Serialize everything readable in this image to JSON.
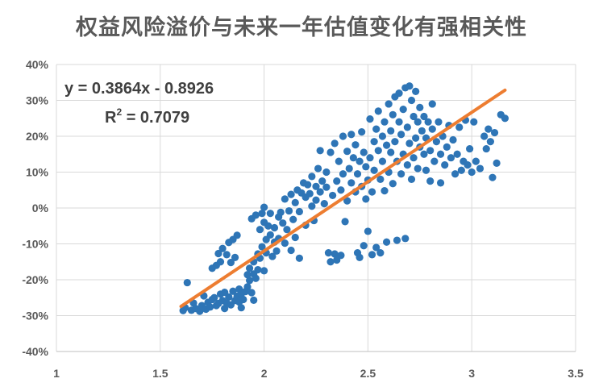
{
  "chart_data": {
    "type": "scatter",
    "title": "权益风险溢价与未来一年估值变化有强相关性",
    "xlabel": "",
    "ylabel": "",
    "xlim": [
      1,
      3.5
    ],
    "ylim": [
      -0.4,
      0.4
    ],
    "x_ticks": [
      "1",
      "1.5",
      "2",
      "2.5",
      "3",
      "3.5"
    ],
    "y_ticks": [
      "-40%",
      "-30%",
      "-20%",
      "-10%",
      "0%",
      "10%",
      "20%",
      "30%",
      "40%"
    ],
    "grid": true,
    "legend": "none",
    "series": [
      {
        "color": "#2E75B6",
        "points": [
          [
            1.61,
            -0.286
          ],
          [
            1.62,
            -0.278
          ],
          [
            1.63,
            -0.208
          ],
          [
            1.65,
            -0.285
          ],
          [
            1.66,
            -0.265
          ],
          [
            1.67,
            -0.28
          ],
          [
            1.69,
            -0.288
          ],
          [
            1.7,
            -0.272
          ],
          [
            1.71,
            -0.245
          ],
          [
            1.72,
            -0.282
          ],
          [
            1.73,
            -0.263
          ],
          [
            1.74,
            -0.276
          ],
          [
            1.75,
            -0.255
          ],
          [
            1.75,
            -0.168
          ],
          [
            1.76,
            -0.25
          ],
          [
            1.77,
            -0.272
          ],
          [
            1.77,
            -0.16
          ],
          [
            1.78,
            -0.266
          ],
          [
            1.78,
            -0.127
          ],
          [
            1.79,
            -0.24
          ],
          [
            1.79,
            -0.15
          ],
          [
            1.8,
            -0.258
          ],
          [
            1.8,
            -0.113
          ],
          [
            1.81,
            -0.28
          ],
          [
            1.81,
            -0.235
          ],
          [
            1.82,
            -0.13
          ],
          [
            1.82,
            -0.265
          ],
          [
            1.83,
            -0.096
          ],
          [
            1.83,
            -0.248
          ],
          [
            1.84,
            -0.152
          ],
          [
            1.84,
            -0.27
          ],
          [
            1.85,
            -0.088
          ],
          [
            1.85,
            -0.232
          ],
          [
            1.86,
            -0.258
          ],
          [
            1.86,
            -0.138
          ],
          [
            1.87,
            -0.246
          ],
          [
            1.87,
            -0.076
          ],
          [
            1.88,
            -0.262
          ],
          [
            1.88,
            -0.226
          ],
          [
            1.89,
            -0.278
          ],
          [
            1.89,
            -0.24
          ],
          [
            1.9,
            -0.255
          ],
          [
            1.91,
            -0.233
          ],
          [
            1.92,
            -0.22
          ],
          [
            1.92,
            -0.186
          ],
          [
            1.93,
            -0.202
          ],
          [
            1.93,
            -0.168
          ],
          [
            1.94,
            -0.03
          ],
          [
            1.94,
            -0.236
          ],
          [
            1.95,
            -0.184
          ],
          [
            1.95,
            -0.15
          ],
          [
            1.95,
            -0.257
          ],
          [
            1.96,
            -0.196
          ],
          [
            1.96,
            -0.02
          ],
          [
            1.97,
            -0.172
          ],
          [
            1.97,
            -0.128
          ],
          [
            1.98,
            -0.06
          ],
          [
            1.98,
            -0.14
          ],
          [
            1.99,
            -0.015
          ],
          [
            1.99,
            -0.108
          ],
          [
            2.0,
            0.002
          ],
          [
            2.0,
            -0.04
          ],
          [
            2.0,
            -0.175
          ],
          [
            2.01,
            -0.088
          ],
          [
            2.01,
            -0.125
          ],
          [
            2.02,
            -0.05
          ],
          [
            2.03,
            -0.015
          ],
          [
            2.03,
            -0.075
          ],
          [
            2.04,
            -0.135
          ],
          [
            2.05,
            -0.095
          ],
          [
            2.05,
            -0.055
          ],
          [
            2.06,
            -0.12
          ],
          [
            2.07,
            -0.025
          ],
          [
            2.07,
            -0.085
          ],
          [
            2.08,
            -0.012
          ],
          [
            2.09,
            -0.042
          ],
          [
            2.1,
            -0.098
          ],
          [
            2.1,
            0.025
          ],
          [
            2.11,
            -0.06
          ],
          [
            2.12,
            -0.008
          ],
          [
            2.13,
            -0.118
          ],
          [
            2.13,
            0.038
          ],
          [
            2.14,
            -0.032
          ],
          [
            2.15,
            -0.082
          ],
          [
            2.15,
            0.015
          ],
          [
            2.16,
            0.05
          ],
          [
            2.17,
            -0.14
          ],
          [
            2.17,
            -0.01
          ],
          [
            2.18,
            0.042
          ],
          [
            2.19,
            0.07
          ],
          [
            2.2,
            0.03
          ],
          [
            2.2,
            -0.048
          ],
          [
            2.21,
            0.065
          ],
          [
            2.22,
            0.04
          ],
          [
            2.23,
            0.005
          ],
          [
            2.23,
            0.088
          ],
          [
            2.24,
            -0.035
          ],
          [
            2.25,
            0.06
          ],
          [
            2.25,
            0.022
          ],
          [
            2.26,
            0.11
          ],
          [
            2.27,
            0.16
          ],
          [
            2.27,
            0.045
          ],
          [
            2.28,
            0.075
          ],
          [
            2.29,
            0.012
          ],
          [
            2.3,
            0.1
          ],
          [
            2.3,
            0.058
          ],
          [
            2.31,
            -0.125
          ],
          [
            2.32,
            0.155
          ],
          [
            2.32,
            -0.15
          ],
          [
            2.33,
            0.035
          ],
          [
            2.34,
            0.18
          ],
          [
            2.34,
            -0.128
          ],
          [
            2.35,
            0.075
          ],
          [
            2.35,
            -0.145
          ],
          [
            2.36,
            0.13
          ],
          [
            2.37,
            0.05
          ],
          [
            2.37,
            -0.132
          ],
          [
            2.38,
            0.2
          ],
          [
            2.38,
            0.095
          ],
          [
            2.39,
            -0.038
          ],
          [
            2.4,
            0.158
          ],
          [
            2.4,
            0.02
          ],
          [
            2.41,
            0.11
          ],
          [
            2.42,
            0.205
          ],
          [
            2.42,
            0.07
          ],
          [
            2.43,
            0.14
          ],
          [
            2.44,
            0.045
          ],
          [
            2.44,
            0.176
          ],
          [
            2.45,
            -0.125
          ],
          [
            2.45,
            0.095
          ],
          [
            2.46,
            0.13
          ],
          [
            2.46,
            -0.138
          ],
          [
            2.47,
            0.06
          ],
          [
            2.47,
            0.212
          ],
          [
            2.48,
            0.155
          ],
          [
            2.48,
            -0.105
          ],
          [
            2.49,
            0.025
          ],
          [
            2.49,
            0.115
          ],
          [
            2.5,
            0.078
          ],
          [
            2.5,
            -0.065
          ],
          [
            2.51,
            0.248
          ],
          [
            2.51,
            0.14
          ],
          [
            2.52,
            0.045
          ],
          [
            2.52,
            -0.13
          ],
          [
            2.53,
            0.185
          ],
          [
            2.53,
            0.105
          ],
          [
            2.54,
            0.22
          ],
          [
            2.54,
            -0.11
          ],
          [
            2.55,
            0.16
          ],
          [
            2.55,
            0.27
          ],
          [
            2.56,
            0.08
          ],
          [
            2.56,
            -0.125
          ],
          [
            2.57,
            0.2
          ],
          [
            2.57,
            0.13
          ],
          [
            2.58,
            0.048
          ],
          [
            2.58,
            0.24
          ],
          [
            2.59,
            0.175
          ],
          [
            2.59,
            -0.095
          ],
          [
            2.6,
            0.29
          ],
          [
            2.6,
            0.1
          ],
          [
            2.61,
            0.155
          ],
          [
            2.61,
            0.215
          ],
          [
            2.62,
            0.26
          ],
          [
            2.62,
            0.068
          ],
          [
            2.63,
            0.31
          ],
          [
            2.63,
            0.185
          ],
          [
            2.64,
            0.13
          ],
          [
            2.64,
            -0.09
          ],
          [
            2.65,
            0.24
          ],
          [
            2.65,
            0.32
          ],
          [
            2.66,
            0.205
          ],
          [
            2.66,
            0.095
          ],
          [
            2.67,
            0.275
          ],
          [
            2.67,
            0.15
          ],
          [
            2.68,
            0.335
          ],
          [
            2.68,
            -0.085
          ],
          [
            2.69,
            0.225
          ],
          [
            2.69,
            0.12
          ],
          [
            2.7,
            0.34
          ],
          [
            2.7,
            0.18
          ],
          [
            2.71,
            0.3
          ],
          [
            2.71,
            0.08
          ],
          [
            2.72,
            0.255
          ],
          [
            2.72,
            0.14
          ],
          [
            2.73,
            0.195
          ],
          [
            2.73,
            0.325
          ],
          [
            2.74,
            0.24
          ],
          [
            2.74,
            0.11
          ],
          [
            2.75,
            0.17
          ],
          [
            2.75,
            0.28
          ],
          [
            2.76,
            0.215
          ],
          [
            2.77,
            0.15
          ],
          [
            2.77,
            0.255
          ],
          [
            2.78,
            0.105
          ],
          [
            2.78,
            0.195
          ],
          [
            2.79,
            0.24
          ],
          [
            2.8,
            0.16
          ],
          [
            2.8,
            0.075
          ],
          [
            2.81,
            0.29
          ],
          [
            2.81,
            0.22
          ],
          [
            2.82,
            0.13
          ],
          [
            2.83,
            0.185
          ],
          [
            2.84,
            0.24
          ],
          [
            2.85,
            0.15
          ],
          [
            2.85,
            0.07
          ],
          [
            2.86,
            0.2
          ],
          [
            2.87,
            0.12
          ],
          [
            2.88,
            0.17
          ],
          [
            2.89,
            0.23
          ],
          [
            2.9,
            0.14
          ],
          [
            2.91,
            0.19
          ],
          [
            2.92,
            0.095
          ],
          [
            2.93,
            0.15
          ],
          [
            2.94,
            0.225
          ],
          [
            2.95,
            0.105
          ],
          [
            2.96,
            0.13
          ],
          [
            2.97,
            0.245
          ],
          [
            2.98,
            0.12
          ],
          [
            2.99,
            0.165
          ],
          [
            3.0,
            0.1
          ],
          [
            3.01,
            0.24
          ],
          [
            3.02,
            0.13
          ],
          [
            3.04,
            0.11
          ],
          [
            3.06,
            0.2
          ],
          [
            3.07,
            0.165
          ],
          [
            3.08,
            0.22
          ],
          [
            3.09,
            0.185
          ],
          [
            3.1,
            0.085
          ],
          [
            3.11,
            0.21
          ],
          [
            3.12,
            0.125
          ],
          [
            3.14,
            0.26
          ],
          [
            3.16,
            0.25
          ]
        ]
      }
    ],
    "trendline": {
      "color": "#ED7D31",
      "slope": 0.3864,
      "intercept": -0.8926,
      "x_range": [
        1.6,
        3.16
      ],
      "equation": "y = 0.3864x - 0.8926",
      "r_squared_label": "R",
      "r_squared_sup": "2",
      "r_squared_value": " = 0.7079"
    }
  }
}
